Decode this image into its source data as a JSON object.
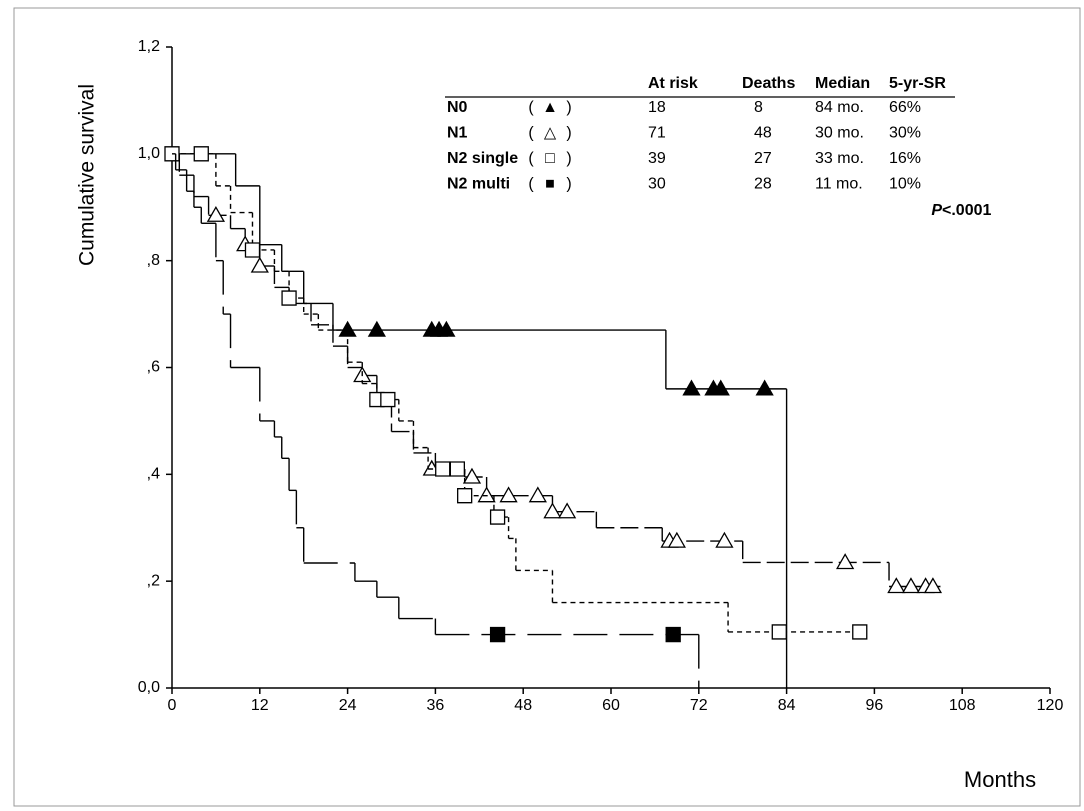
{
  "chart_data": {
    "type": "step",
    "x_label": "Months",
    "y_label": "Cumulative survival",
    "xlim": [
      0,
      120
    ],
    "xticks": [
      0,
      12,
      24,
      36,
      48,
      60,
      72,
      84,
      96,
      108,
      120
    ],
    "ylim": [
      0,
      1.2
    ],
    "yticks": [
      {
        "value": 0,
        "label": "0,0"
      },
      {
        "value": 0.2,
        "label": ",2"
      },
      {
        "value": 0.4,
        "label": ",4"
      },
      {
        "value": 0.6,
        "label": ",6"
      },
      {
        "value": 0.8,
        "label": ",8"
      },
      {
        "value": 1.0,
        "label": "1,0"
      },
      {
        "value": 1.2,
        "label": "1,2"
      }
    ],
    "table_headers": [
      "At risk",
      "Deaths",
      "Median",
      "5-yr-SR"
    ],
    "p_label": "P",
    "p_value": "<.0001",
    "series": [
      {
        "name": "N0",
        "legend_symbol": "▲",
        "marker": "filled-triangle",
        "dash": "solid",
        "color": "#000000",
        "table": [
          "18",
          "8",
          "84 mo.",
          "66%"
        ],
        "x": [
          0,
          8.7,
          12,
          15,
          18,
          22,
          67.5,
          84
        ],
        "values": [
          1.0,
          0.94,
          0.83,
          0.78,
          0.72,
          0.67,
          0.56,
          0.0
        ],
        "censored": {
          "x": [
            24,
            28,
            35.5,
            36.5,
            37.5,
            71,
            74,
            75,
            81
          ],
          "values": [
            0.67,
            0.67,
            0.67,
            0.67,
            0.67,
            0.56,
            0.56,
            0.56,
            0.56
          ]
        }
      },
      {
        "name": "N1",
        "legend_symbol": "△",
        "marker": "open-triangle",
        "dash": "long-dash",
        "color": "#000000",
        "table": [
          "71",
          "48",
          "30 mo.",
          "30%"
        ],
        "x": [
          0,
          1,
          3,
          5,
          8,
          10,
          12,
          14,
          16,
          19,
          22,
          24,
          26,
          28,
          30,
          33,
          36,
          40,
          43,
          52,
          58,
          67,
          78,
          98,
          105
        ],
        "values": [
          1.0,
          0.96,
          0.92,
          0.885,
          0.86,
          0.83,
          0.79,
          0.75,
          0.72,
          0.68,
          0.64,
          0.6,
          0.585,
          0.54,
          0.48,
          0.44,
          0.41,
          0.395,
          0.36,
          0.33,
          0.3,
          0.275,
          0.235,
          0.19,
          0.19
        ],
        "censored": {
          "x": [
            6,
            10,
            12,
            26,
            35.5,
            41,
            43,
            46,
            50,
            52,
            54,
            68,
            69,
            75.5,
            92,
            99,
            101,
            103,
            104
          ],
          "values": [
            0.885,
            0.83,
            0.79,
            0.585,
            0.41,
            0.395,
            0.36,
            0.36,
            0.36,
            0.33,
            0.33,
            0.275,
            0.275,
            0.275,
            0.235,
            0.19,
            0.19,
            0.19,
            0.19
          ]
        }
      },
      {
        "name": "N2 single",
        "legend_symbol": "□",
        "marker": "open-square",
        "dash": "short-dash",
        "color": "#000000",
        "table": [
          "39",
          "27",
          "33 mo.",
          "16%"
        ],
        "x": [
          0,
          6,
          8,
          11,
          14,
          16,
          18,
          20,
          24,
          26,
          28,
          31,
          33,
          35,
          40,
          44,
          46,
          47,
          52,
          76,
          94
        ],
        "values": [
          1.0,
          0.94,
          0.89,
          0.82,
          0.78,
          0.73,
          0.7,
          0.67,
          0.61,
          0.57,
          0.54,
          0.5,
          0.45,
          0.41,
          0.36,
          0.32,
          0.28,
          0.22,
          0.16,
          0.105,
          0.105
        ],
        "censored": {
          "x": [
            0,
            4,
            11,
            16,
            28,
            29.5,
            37,
            39,
            40,
            44.5,
            83,
            94
          ],
          "values": [
            1.0,
            1.0,
            0.82,
            0.73,
            0.54,
            0.54,
            0.41,
            0.41,
            0.36,
            0.32,
            0.105,
            0.105
          ]
        }
      },
      {
        "name": "N2 multi",
        "legend_symbol": "■",
        "marker": "filled-square",
        "dash": "gap-dash",
        "color": "#000000",
        "table": [
          "30",
          "28",
          "11 mo.",
          "10%"
        ],
        "x": [
          0,
          0.5,
          2,
          3,
          4,
          6,
          7,
          8,
          12,
          14,
          15,
          16,
          17,
          18,
          25,
          28,
          31,
          36,
          72
        ],
        "values": [
          1.0,
          0.97,
          0.93,
          0.9,
          0.87,
          0.8,
          0.7,
          0.6,
          0.5,
          0.47,
          0.43,
          0.37,
          0.3,
          0.234,
          0.2,
          0.17,
          0.13,
          0.1,
          0.0
        ],
        "censored": {
          "x": [
            44.5,
            68.5
          ],
          "values": [
            0.1,
            0.1
          ]
        }
      }
    ]
  }
}
